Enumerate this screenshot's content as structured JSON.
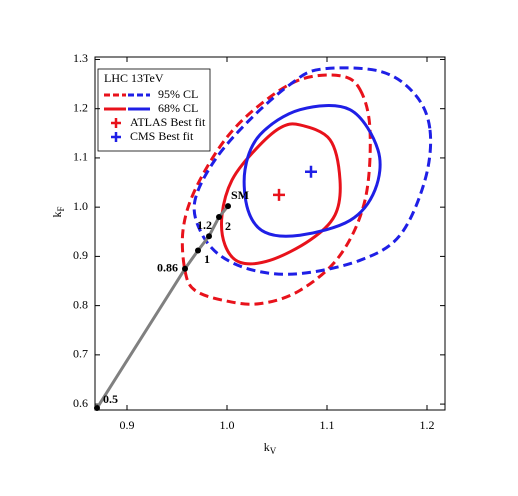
{
  "chart_data": {
    "type": "contour",
    "x_label": {
      "base": "k",
      "sub": "V"
    },
    "y_label": {
      "base": "k",
      "sub": "F"
    },
    "xlim": [
      0.868,
      1.218
    ],
    "ylim": [
      0.588,
      1.305
    ],
    "xticks": [
      0.9,
      {
        "value": 1.0,
        "label": "1.0"
      },
      1.1,
      1.2
    ],
    "yticks": [
      0.6,
      0.7,
      0.8,
      0.9,
      {
        "value": 1.0,
        "label": "1.0"
      },
      1.1,
      1.2,
      1.3
    ],
    "legend": {
      "title": "LHC 13TeV",
      "position": "upper left"
    },
    "contours": [
      {
        "name": "95% CL",
        "dash": true,
        "lines": [
          {
            "color": "#e8121b",
            "x": [
              1.133,
              1.143,
              1.138,
              1.113,
              1.073,
              1.033,
              0.998,
              0.968,
              0.958,
              0.956,
              0.968,
              0.998,
              1.033,
              1.073,
              1.113
            ],
            "y": [
              1.239,
              1.157,
              1.014,
              0.902,
              0.831,
              0.804,
              0.81,
              0.831,
              0.871,
              0.953,
              1.035,
              1.137,
              1.208,
              1.259,
              1.267
            ]
          },
          {
            "color": "#1f1fe6",
            "x": [
              1.203,
              1.198,
              1.173,
              1.133,
              1.073,
              1.028,
              0.993,
              0.973,
              0.968,
              0.988,
              1.023,
              1.063,
              1.093,
              1.153,
              1.188
            ],
            "y": [
              1.157,
              1.055,
              0.943,
              0.892,
              0.865,
              0.871,
              0.902,
              0.953,
              1.014,
              1.096,
              1.178,
              1.249,
              1.28,
              1.276,
              1.229
            ]
          }
        ]
      },
      {
        "name": "68% CL",
        "dash": false,
        "lines": [
          {
            "color": "#e8121b",
            "x": [
              1.073,
              1.103,
              1.113,
              1.108,
              1.083,
              1.043,
              1.013,
              0.998,
              0.995,
              1.005,
              1.028,
              1.053
            ],
            "y": [
              1.167,
              1.137,
              1.055,
              0.984,
              0.933,
              0.892,
              0.888,
              0.923,
              0.984,
              1.055,
              1.116,
              1.161
            ]
          },
          {
            "color": "#1f1fe6",
            "x": [
              1.073,
              1.123,
              1.151,
              1.148,
              1.123,
              1.073,
              1.038,
              1.021,
              1.018,
              1.033
            ],
            "y": [
              1.198,
              1.198,
              1.116,
              1.035,
              0.973,
              0.943,
              0.949,
              0.994,
              1.076,
              1.147
            ]
          }
        ]
      }
    ],
    "best_fit": [
      {
        "name": "ATLAS Best fit",
        "color": "#e8121b",
        "x": 1.052,
        "y": 1.025
      },
      {
        "name": "CMS  Best fit",
        "color": "#1f1fe6",
        "x": 1.084,
        "y": 1.072
      }
    ],
    "path": {
      "color": "#808080",
      "x": [
        0.87,
        0.958,
        0.971,
        0.982,
        0.992,
        1.001
      ],
      "y": [
        0.592,
        0.875,
        0.912,
        0.941,
        0.98,
        1.002
      ],
      "labels": [
        "0.5",
        "0.86",
        "1",
        "1.2",
        "2",
        "SM"
      ]
    }
  }
}
